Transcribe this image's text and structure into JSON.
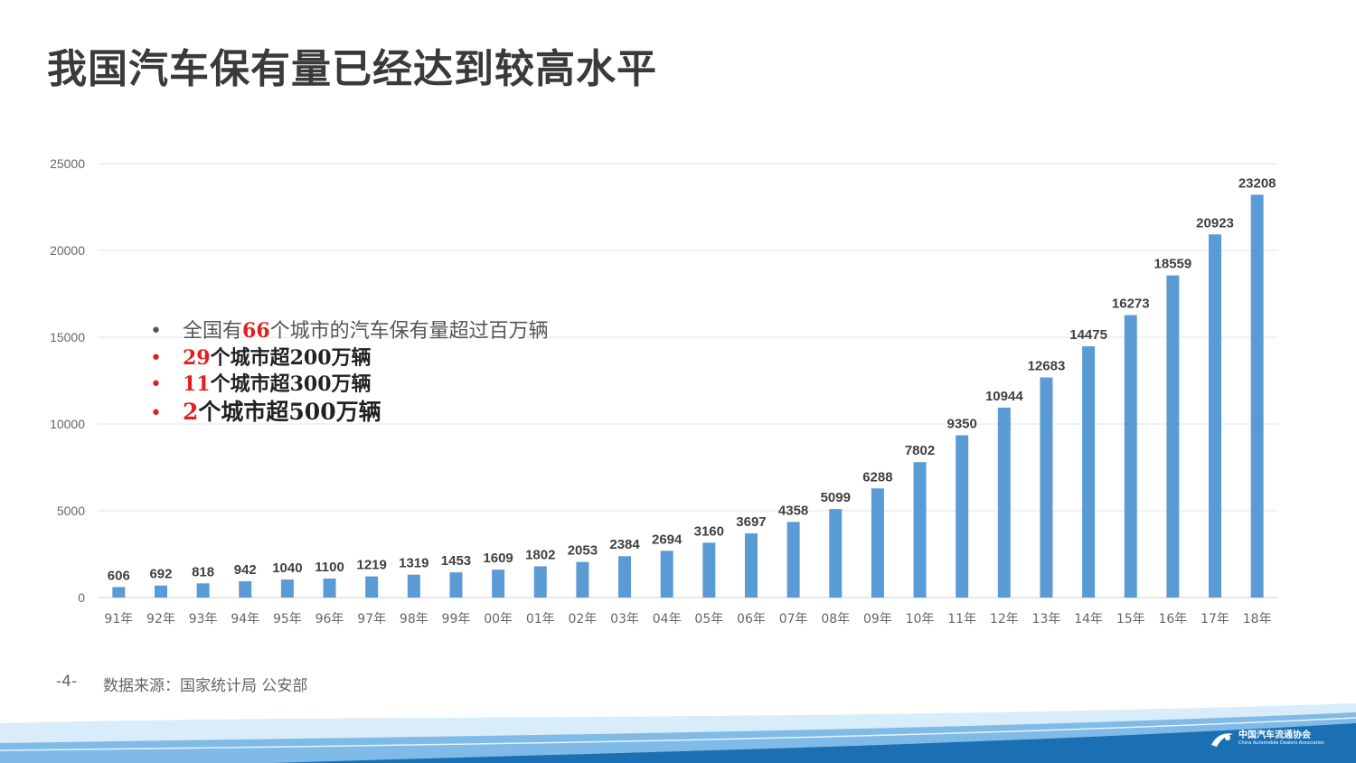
{
  "slide": {
    "title": "我国汽车保有量已经达到较高水平",
    "page_number": "-4-",
    "source": "数据来源：国家统计局  公安部"
  },
  "bullets": [
    {
      "prefix": "全国有",
      "highlight": "66",
      "text": "个城市的汽车保有量超过百万辆",
      "dot_color": "#555555"
    },
    {
      "prefix": "",
      "highlight": "29",
      "text": "个城市超200万辆",
      "dot_color": "#e02020"
    },
    {
      "prefix": "",
      "highlight": "11",
      "text": "个城市超300万辆",
      "dot_color": "#e02020"
    },
    {
      "prefix": "",
      "highlight": "2",
      "text": "个城市超500万辆",
      "dot_color": "#e02020"
    }
  ],
  "logo": {
    "name_cn": "中国汽车流通协会",
    "name_en": "China Automobile Dealers Association"
  },
  "colors": {
    "bar": "#5b9bd5",
    "highlight": "#e02020",
    "wave_light": "#cfe6f7",
    "wave_dark": "#1b6fb3"
  },
  "chart_data": {
    "type": "bar",
    "categories": [
      "91年",
      "92年",
      "93年",
      "94年",
      "95年",
      "96年",
      "97年",
      "98年",
      "99年",
      "00年",
      "01年",
      "02年",
      "03年",
      "04年",
      "05年",
      "06年",
      "07年",
      "08年",
      "09年",
      "10年",
      "11年",
      "12年",
      "13年",
      "14年",
      "15年",
      "16年",
      "17年",
      "18年"
    ],
    "values": [
      606,
      692,
      818,
      942,
      1040,
      1100,
      1219,
      1319,
      1453,
      1609,
      1802,
      2053,
      2384,
      2694,
      3160,
      3697,
      4358,
      5099,
      6288,
      7802,
      9350,
      10944,
      12683,
      14475,
      16273,
      18559,
      20923,
      23208
    ],
    "yticks": [
      0,
      5000,
      10000,
      15000,
      20000,
      25000
    ],
    "ylim": [
      0,
      25000
    ],
    "grid": true,
    "data_labels": true
  }
}
